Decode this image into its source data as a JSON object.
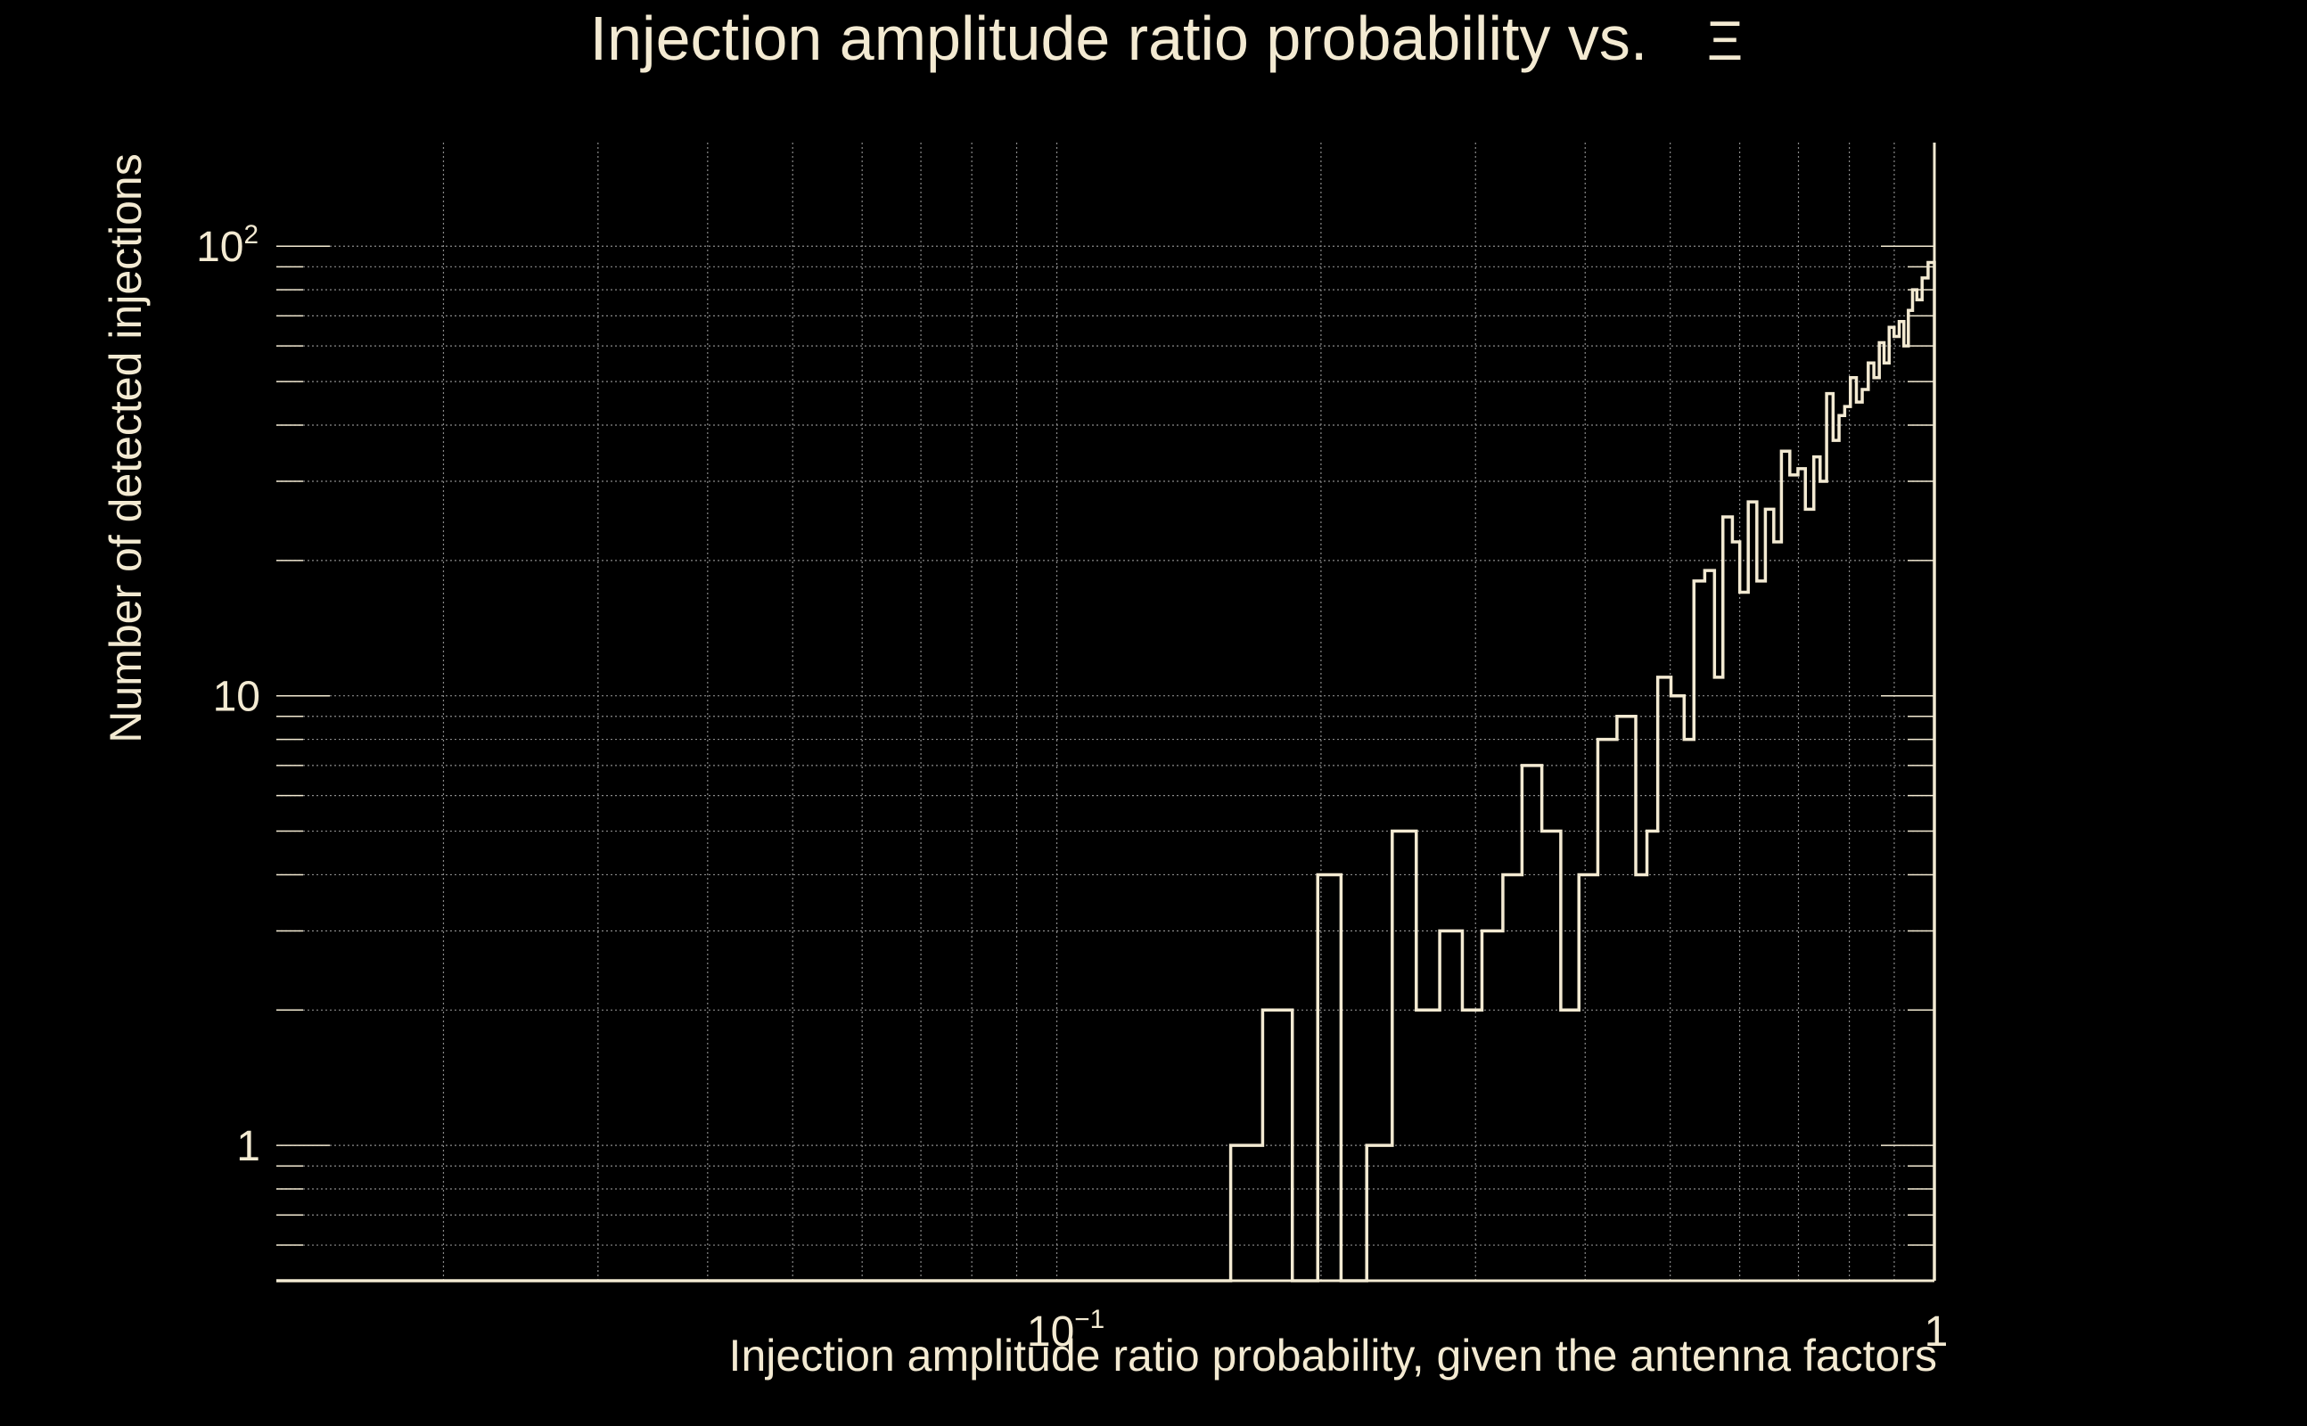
{
  "chart_data": {
    "type": "histogram-step",
    "title": "Injection amplitude ratio probability vs.",
    "title_symbol": "Ξ",
    "xlabel": "Injection amplitude ratio probability, given the antenna factors",
    "ylabel": "Number of detected injections",
    "xscale": "log",
    "yscale": "log",
    "xlim": [
      0.0129,
      1.0
    ],
    "ylim": [
      0.5,
      170
    ],
    "grid": true,
    "line_color": "#f3ead2",
    "background": "#000000",
    "grid_color": "#8a8a8a",
    "x_ticks": [
      {
        "value": 0.1,
        "base": "10",
        "exp": "−1"
      },
      {
        "value": 1,
        "base": "1",
        "exp": ""
      }
    ],
    "y_ticks": [
      {
        "value": 1,
        "base": "1",
        "exp": ""
      },
      {
        "value": 10,
        "base": "10",
        "exp": ""
      },
      {
        "value": 100,
        "base": "10",
        "exp": "2"
      }
    ],
    "edges": [
      0.1578,
      0.1716,
      0.1855,
      0.1983,
      0.2108,
      0.2255,
      0.2411,
      0.2568,
      0.2731,
      0.2898,
      0.3051,
      0.3223,
      0.3389,
      0.357,
      0.3752,
      0.3935,
      0.4135,
      0.4348,
      0.4568,
      0.4704,
      0.4839,
      0.501,
      0.5186,
      0.5321,
      0.5474,
      0.5616,
      0.5741,
      0.5886,
      0.6001,
      0.6136,
      0.6276,
      0.6418,
      0.6561,
      0.6694,
      0.6843,
      0.6991,
      0.7128,
      0.7288,
      0.7409,
      0.7537,
      0.7666,
      0.7787,
      0.7903,
      0.8022,
      0.8149,
      0.8275,
      0.8407,
      0.8532,
      0.8654,
      0.8763,
      0.8881,
      0.8996,
      0.9118,
      0.9231,
      0.934,
      0.9443,
      0.9551,
      0.9683,
      0.9836,
      1.0
    ],
    "counts": [
      1,
      2,
      0,
      4,
      0,
      1,
      5,
      2,
      3,
      2,
      3,
      4,
      7,
      5,
      2,
      4,
      8,
      9,
      4,
      5,
      11,
      10,
      8,
      18,
      19,
      11,
      25,
      22,
      17,
      27,
      18,
      26,
      22,
      35,
      31,
      32,
      26,
      34,
      30,
      47,
      37,
      42,
      44,
      51,
      45,
      48,
      55,
      51,
      61,
      55,
      66,
      63,
      68,
      60,
      72,
      80,
      76,
      85,
      92
    ]
  }
}
